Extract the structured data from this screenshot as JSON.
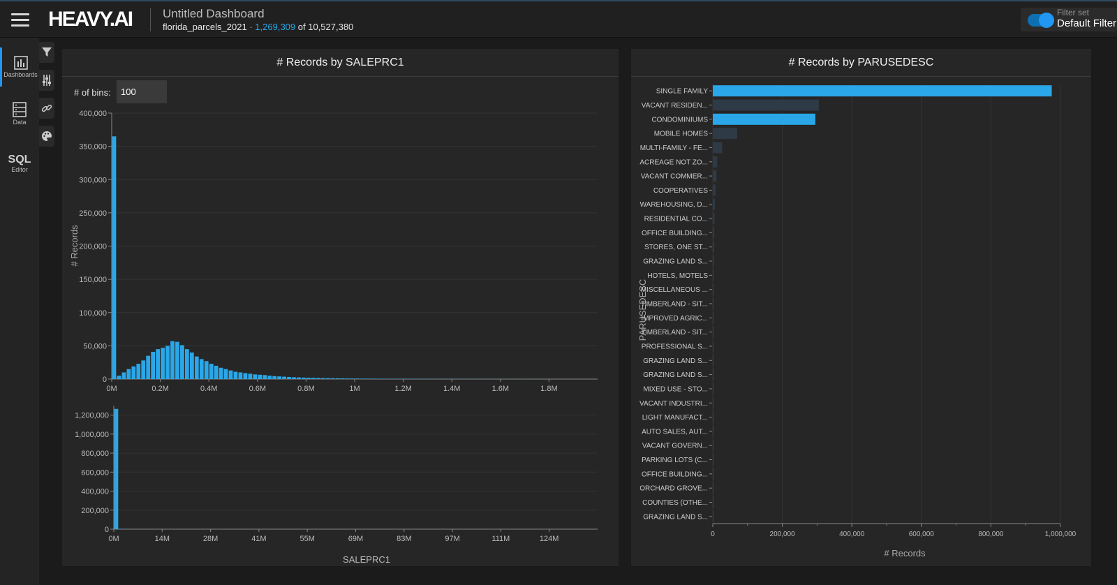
{
  "header": {
    "logo": "HEAVY.AI",
    "dashboard_title": "Untitled Dashboard",
    "table_name": "florida_parcels_2021",
    "separator": "·",
    "filtered_count": "1,269,309",
    "total_text": "of 10,527,380",
    "filter_set_label": "Filter set",
    "filter_set_value": "Default Filter",
    "menu_icon": "hamburger-icon"
  },
  "nav": {
    "dashboards": "Dashboards",
    "data": "Data",
    "sql": "SQL",
    "editor": "Editor"
  },
  "tools": [
    "filter-icon",
    "sliders-icon",
    "link-icon",
    "palette-icon"
  ],
  "colors": {
    "accent": "#2aa7e8",
    "bar": "#2aa7e8",
    "bar_dim": "#2e3a46",
    "panel": "#262626"
  },
  "histogram": {
    "title": "# Records by SALEPRC1",
    "bins_label": "# of bins:",
    "bins_value": "100",
    "ylabel": "# Records",
    "xlabel": "SALEPRC1"
  },
  "barchart": {
    "title": "# Records by PARUSEDESC",
    "ylabel": "PARUSEDESC",
    "xlabel": "# Records"
  },
  "chart_data": [
    {
      "type": "bar",
      "title": "# Records by SALEPRC1",
      "ylabel": "# Records",
      "ylim": [
        0,
        400000
      ],
      "xlim": [
        0,
        2000000
      ],
      "yticks": [
        "400,000",
        "350,000",
        "300,000",
        "250,000",
        "200,000",
        "150,000",
        "100,000",
        "50,000",
        "0"
      ],
      "ytick_values": [
        400000,
        350000,
        300000,
        250000,
        200000,
        150000,
        100000,
        50000,
        0
      ],
      "xticks": [
        "0M",
        "0.2M",
        "0.4M",
        "0.6M",
        "0.8M",
        "1M",
        "1.2M",
        "1.4M",
        "1.6M",
        "1.8M"
      ],
      "xtick_values": [
        0,
        200000,
        400000,
        600000,
        800000,
        1000000,
        1200000,
        1400000,
        1600000,
        1800000
      ],
      "bin_width": 20000,
      "values": [
        365000,
        5000,
        10000,
        15000,
        19000,
        23000,
        28000,
        35000,
        41000,
        45000,
        47000,
        50000,
        57000,
        56000,
        51000,
        45000,
        40000,
        34000,
        30000,
        27000,
        23000,
        20000,
        17000,
        15000,
        13000,
        11000,
        10000,
        9000,
        8000,
        7000,
        6500,
        6000,
        5000,
        4500,
        4000,
        3600,
        3200,
        2800,
        2500,
        2200,
        2000,
        1800,
        1600,
        1400,
        1300,
        1200,
        1100,
        1000,
        900,
        850,
        800,
        700,
        650,
        600,
        550,
        500,
        480,
        450,
        420,
        400,
        380,
        350,
        330,
        300,
        290,
        280,
        260,
        250,
        240,
        230,
        220,
        210,
        200,
        190,
        180,
        170,
        160,
        150,
        145,
        140,
        135,
        130,
        125,
        120,
        115,
        110,
        105,
        100,
        95,
        90,
        85,
        80,
        75,
        70,
        65,
        60,
        55,
        50,
        45,
        40
      ]
    },
    {
      "type": "bar",
      "title": "",
      "xlabel": "SALEPRC1",
      "ylim": [
        0,
        1300000
      ],
      "xlim": [
        0,
        138000000
      ],
      "yticks": [
        "1,200,000",
        "1,000,000",
        "800,000",
        "600,000",
        "400,000",
        "200,000",
        "0"
      ],
      "ytick_values": [
        1200000,
        1000000,
        800000,
        600000,
        400000,
        200000,
        0
      ],
      "xticks": [
        "0M",
        "14M",
        "28M",
        "41M",
        "55M",
        "69M",
        "83M",
        "97M",
        "111M",
        "124M"
      ],
      "xtick_values": [
        0,
        13800000,
        27600000,
        41400000,
        55200000,
        69000000,
        82800000,
        96600000,
        110400000,
        124200000
      ],
      "bin_width": 1380000,
      "values": [
        1265000,
        4000,
        800,
        300,
        100
      ]
    },
    {
      "type": "bar",
      "orientation": "horizontal",
      "title": "# Records by PARUSEDESC",
      "xlabel": "# Records",
      "ylabel": "PARUSEDESC",
      "xlim": [
        0,
        1000000
      ],
      "xticks": [
        "0",
        "200,000",
        "400,000",
        "600,000",
        "800,000",
        "1,000,000"
      ],
      "xtick_values": [
        0,
        200000,
        400000,
        600000,
        800000,
        1000000
      ],
      "categories": [
        "SINGLE FAMILY",
        "VACANT RESIDEN...",
        "CONDOMINIUMS",
        "MOBILE HOMES",
        "MULTI-FAMILY - FE...",
        "ACREAGE NOT ZO...",
        "VACANT COMMER...",
        "COOPERATIVES",
        "WAREHOUSING, D...",
        "RESIDENTIAL CO...",
        "OFFICE BUILDING...",
        "STORES, ONE ST...",
        "GRAZING LAND S...",
        "HOTELS, MOTELS",
        "MISCELLANEOUS ...",
        "TIMBERLAND - SIT...",
        "IMPROVED AGRIC...",
        "TIMBERLAND - SIT...",
        "PROFESSIONAL S...",
        "GRAZING LAND S...",
        "GRAZING LAND S...",
        "MIXED USE - STO...",
        "VACANT INDUSTRI...",
        "LIGHT MANUFACT...",
        "AUTO SALES, AUT...",
        "VACANT GOVERN...",
        "PARKING LOTS (C...",
        "OFFICE BUILDING...",
        "ORCHARD GROVE...",
        "COUNTIES (OTHE...",
        "GRAZING LAND S..."
      ],
      "values": [
        975000,
        305000,
        295000,
        70000,
        27000,
        13000,
        11000,
        8000,
        6000,
        5000,
        4500,
        4000,
        3500,
        3000,
        2800,
        2500,
        2300,
        2100,
        2000,
        1800,
        1700,
        1600,
        1500,
        1400,
        1300,
        1200,
        1100,
        1000,
        900,
        800,
        700
      ],
      "selected": [
        true,
        false,
        true,
        false,
        false,
        false,
        false,
        false,
        false,
        false,
        false,
        false,
        false,
        false,
        false,
        false,
        false,
        false,
        false,
        false,
        false,
        false,
        false,
        false,
        false,
        false,
        false,
        false,
        false,
        false,
        false
      ]
    }
  ]
}
